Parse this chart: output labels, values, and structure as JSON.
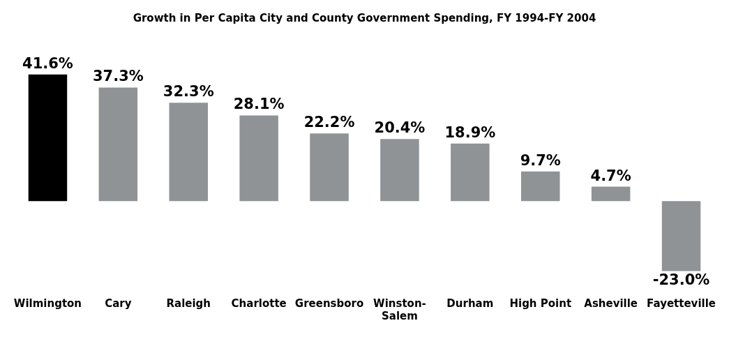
{
  "chart_data": {
    "type": "bar",
    "title": "Growth in Per Capita City and County Government Spending, FY 1994-FY 2004",
    "categories": [
      "Wilmington",
      "Cary",
      "Raleigh",
      "Charlotte",
      "Greensboro",
      "Winston-Salem",
      "Durham",
      "High Point",
      "Asheville",
      "Fayetteville"
    ],
    "values": [
      41.6,
      37.3,
      32.3,
      28.1,
      22.2,
      20.4,
      18.9,
      9.7,
      4.7,
      -23.0
    ],
    "value_labels": [
      "41.6%",
      "37.3%",
      "32.3%",
      "28.1%",
      "22.2%",
      "20.4%",
      "18.9%",
      "9.7%",
      "4.7%",
      "-23.0%"
    ],
    "colors": [
      "#000000",
      "#8f9396",
      "#8f9396",
      "#8f9396",
      "#8f9396",
      "#8f9396",
      "#8f9396",
      "#8f9396",
      "#8f9396",
      "#8f9396"
    ],
    "grid": false,
    "legend": false
  }
}
